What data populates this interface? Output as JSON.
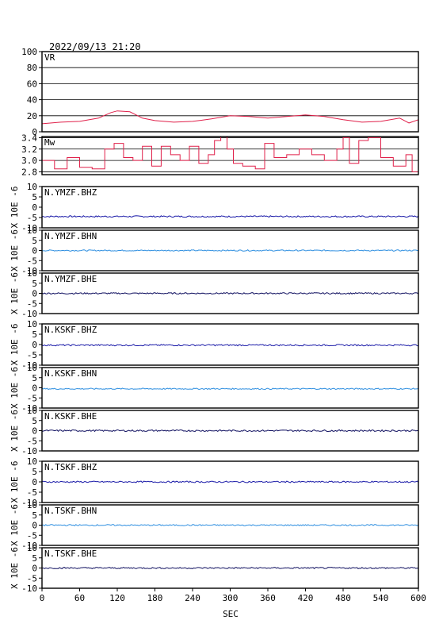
{
  "header": {
    "timestamp": "2022/09/13 21:20"
  },
  "chart_data": [
    {
      "type": "line",
      "label": "VR",
      "ylim": [
        0,
        100
      ],
      "yticks": [
        0,
        20,
        40,
        60,
        80,
        100
      ],
      "grid": true,
      "color": "#e0204a",
      "x": [
        0,
        30,
        60,
        90,
        110,
        120,
        140,
        160,
        180,
        210,
        240,
        270,
        300,
        330,
        360,
        390,
        420,
        450,
        480,
        510,
        540,
        570,
        585,
        600
      ],
      "values": [
        10,
        12,
        13,
        17,
        24,
        26,
        25,
        17,
        14,
        12,
        13,
        16,
        20,
        19,
        17,
        19,
        21,
        19,
        15,
        12,
        13,
        17,
        11,
        15
      ]
    },
    {
      "type": "line",
      "label": "Mw",
      "ylim": [
        2.75,
        3.42
      ],
      "yticks": [
        2.8,
        3.0,
        3.2,
        3.4
      ],
      "ytick_labels": [
        "2.8",
        "3.0",
        "3.2",
        "3.4"
      ],
      "grid": true,
      "color": "#e0204a",
      "x": [
        0,
        20,
        40,
        60,
        80,
        95,
        100,
        115,
        130,
        145,
        160,
        175,
        190,
        205,
        220,
        235,
        250,
        265,
        275,
        285,
        295,
        305,
        320,
        340,
        355,
        370,
        390,
        410,
        430,
        450,
        470,
        480,
        490,
        505,
        520,
        540,
        560,
        580,
        590,
        600
      ],
      "values": [
        3.0,
        2.85,
        3.05,
        2.88,
        2.85,
        2.85,
        3.2,
        3.3,
        3.05,
        3.0,
        3.25,
        2.9,
        3.25,
        3.1,
        3.0,
        3.25,
        2.95,
        3.1,
        3.35,
        3.42,
        3.2,
        2.95,
        2.9,
        2.85,
        3.3,
        3.05,
        3.1,
        3.2,
        3.1,
        3.0,
        3.2,
        3.4,
        2.95,
        3.35,
        3.4,
        3.05,
        2.9,
        3.1,
        2.8,
        3.0
      ]
    },
    {
      "type": "line",
      "label": "N.YMZF.BHZ",
      "ylim": [
        -10,
        10
      ],
      "yticks": [
        -10,
        -5,
        0,
        5,
        10
      ],
      "color": "#1a1aa8",
      "baseline": -4.5,
      "noise": 0.35,
      "grid": false
    },
    {
      "type": "line",
      "label": "N.YMZF.BHN",
      "ylim": [
        -10,
        10
      ],
      "yticks": [
        -10,
        -5,
        0,
        5,
        10
      ],
      "color": "#2f8fe0",
      "baseline": 0,
      "noise": 0.3,
      "grid": false
    },
    {
      "type": "line",
      "label": "N.YMZF.BHE",
      "ylim": [
        -10,
        10
      ],
      "yticks": [
        -10,
        -5,
        0,
        5,
        10
      ],
      "color": "#101060",
      "baseline": 0,
      "noise": 0.35,
      "grid": false
    },
    {
      "type": "line",
      "label": "N.KSKF.BHZ",
      "ylim": [
        -10,
        10
      ],
      "yticks": [
        -10,
        -5,
        0,
        5,
        10
      ],
      "color": "#1a1aa8",
      "baseline": -0.3,
      "noise": 0.35,
      "grid": false
    },
    {
      "type": "line",
      "label": "N.KSKF.BHN",
      "ylim": [
        -10,
        10
      ],
      "yticks": [
        -10,
        -5,
        0,
        5,
        10
      ],
      "color": "#2f8fe0",
      "baseline": -0.5,
      "noise": 0.3,
      "grid": false
    },
    {
      "type": "line",
      "label": "N.KSKF.BHE",
      "ylim": [
        -10,
        10
      ],
      "yticks": [
        -10,
        -5,
        0,
        5,
        10
      ],
      "color": "#101060",
      "baseline": 0,
      "noise": 0.4,
      "grid": false
    },
    {
      "type": "line",
      "label": "N.TSKF.BHZ",
      "ylim": [
        -10,
        10
      ],
      "yticks": [
        -10,
        -5,
        0,
        5,
        10
      ],
      "color": "#1a1aa8",
      "baseline": 0,
      "noise": 0.35,
      "grid": false
    },
    {
      "type": "line",
      "label": "N.TSKF.BHN",
      "ylim": [
        -10,
        10
      ],
      "yticks": [
        -10,
        -5,
        0,
        5,
        10
      ],
      "color": "#2f8fe0",
      "baseline": 0,
      "noise": 0.3,
      "grid": false
    },
    {
      "type": "line",
      "label": "N.TSKF.BHE",
      "ylim": [
        -10,
        10
      ],
      "yticks": [
        -10,
        -5,
        0,
        5,
        10
      ],
      "color": "#101060",
      "baseline": 0,
      "noise": 0.35,
      "grid": false
    }
  ],
  "waveform_ylabel": "X 10E -6",
  "x_axis": {
    "xlim": [
      0,
      600
    ],
    "ticks": [
      0,
      60,
      120,
      180,
      240,
      300,
      360,
      420,
      480,
      540,
      600
    ],
    "xlabel": "SEC"
  }
}
